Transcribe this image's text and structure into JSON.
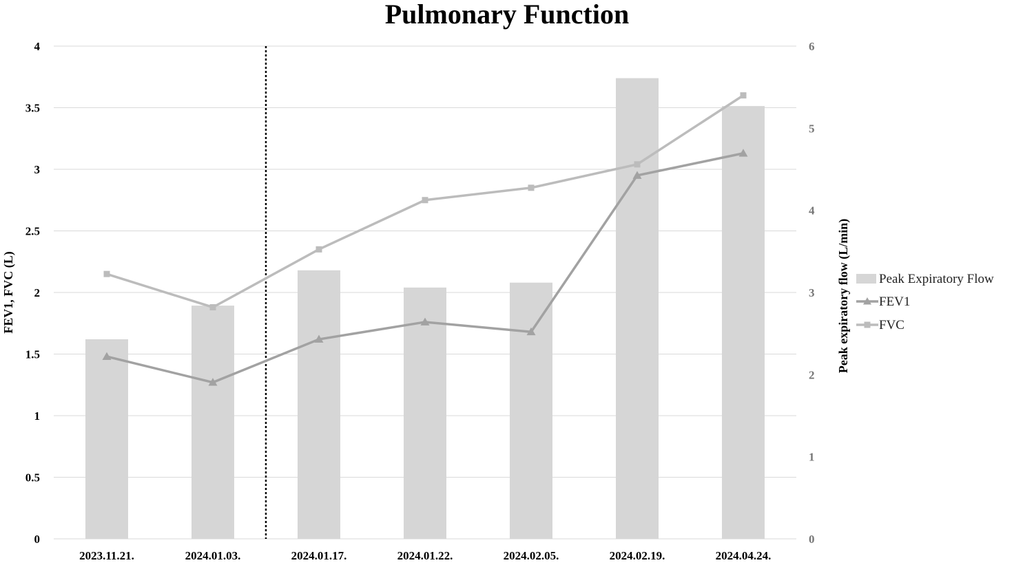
{
  "chart_data": {
    "type": "bar",
    "title": "Pulmonary Function",
    "categories": [
      "2023.11.21.",
      "2024.01.03.",
      "2024.01.17.",
      "2024.01.22.",
      "2024.02.05.",
      "2024.02.19.",
      "2024.04.24."
    ],
    "ylabel_left": "FEV1, FVC (L)",
    "ylabel_right": "Peak expiratory flow (L/min)",
    "ylim_left": [
      0,
      4
    ],
    "ylim_right": [
      0,
      6
    ],
    "yticks_left": [
      "0",
      "0.5",
      "1",
      "1.5",
      "2",
      "2.5",
      "3",
      "3.5",
      "4"
    ],
    "yticks_right": [
      "0",
      "1",
      "2",
      "3",
      "4",
      "5",
      "6"
    ],
    "grid": true,
    "legend_position": "right",
    "divider_after_category_index": 1,
    "series": [
      {
        "name": "Peak Expiratory Flow",
        "kind": "bar",
        "axis": "right",
        "color": "#d6d6d6",
        "values": [
          2.43,
          2.84,
          3.27,
          3.06,
          3.12,
          5.61,
          5.27
        ]
      },
      {
        "name": "FEV1",
        "kind": "line",
        "marker": "triangle",
        "axis": "left",
        "color": "#a2a2a2",
        "values": [
          1.48,
          1.27,
          1.62,
          1.76,
          1.68,
          2.95,
          3.13
        ]
      },
      {
        "name": "FVC",
        "kind": "line",
        "marker": "square",
        "axis": "left",
        "color": "#bcbcbc",
        "values": [
          2.15,
          1.88,
          2.35,
          2.75,
          2.85,
          3.04,
          3.6
        ]
      }
    ]
  }
}
